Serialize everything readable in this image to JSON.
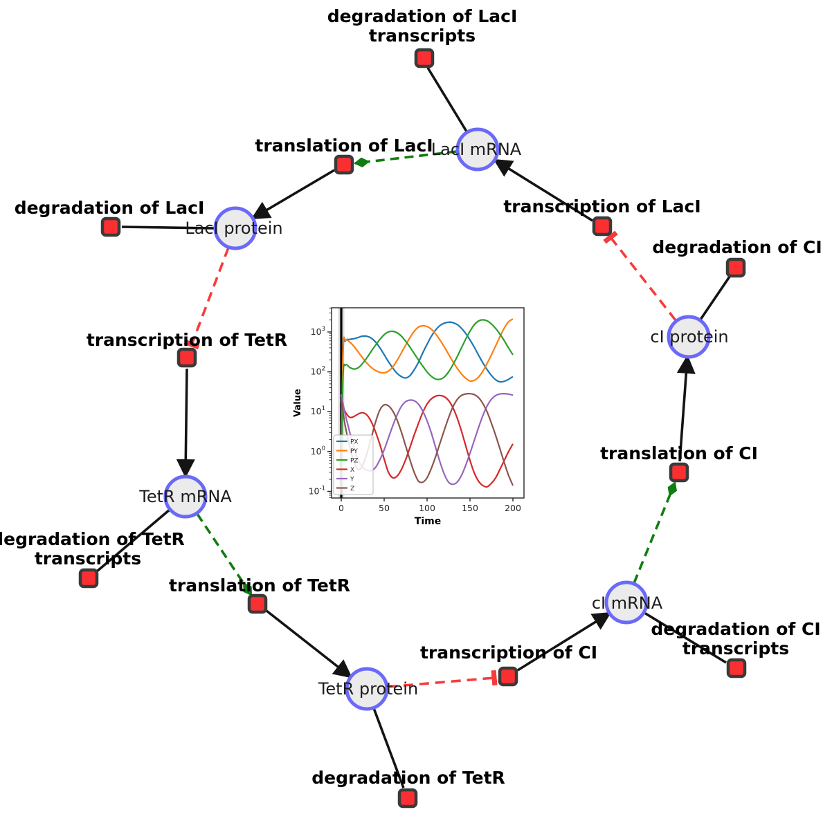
{
  "diagram": {
    "colors": {
      "species_fill": "#ebebeb",
      "species_stroke": "#6a6af8",
      "reaction_fill": "#fa2f32",
      "reaction_stroke": "#3a3a3a",
      "consumption_edge": "#141414",
      "modifier_edge": "#0f7d0f",
      "inhibition_edge": "#f93a3a"
    },
    "species": [
      {
        "id": "laci-mrna",
        "label": "LacI mRNA"
      },
      {
        "id": "laci-protein",
        "label": "LacI protein"
      },
      {
        "id": "tetr-mrna",
        "label": "TetR mRNA"
      },
      {
        "id": "tetr-protein",
        "label": "TetR protein"
      },
      {
        "id": "ci-mrna",
        "label": "cI mRNA"
      },
      {
        "id": "ci-protein",
        "label": "cI protein"
      }
    ],
    "reactions": [
      {
        "id": "deg-laci-transcripts",
        "lines": [
          "degradation of LacI",
          "transcripts"
        ]
      },
      {
        "id": "transl-laci",
        "lines": [
          "translation of LacI"
        ]
      },
      {
        "id": "deg-laci",
        "lines": [
          "degradation of LacI"
        ]
      },
      {
        "id": "transcr-laci",
        "lines": [
          "transcription of LacI"
        ]
      },
      {
        "id": "deg-ci",
        "lines": [
          "degradation of CI"
        ]
      },
      {
        "id": "transcr-tetr",
        "lines": [
          "transcription of TetR"
        ]
      },
      {
        "id": "transl-ci",
        "lines": [
          "translation of CI"
        ]
      },
      {
        "id": "deg-tetr-transcripts",
        "lines": [
          "degradation of TetR",
          "transcripts"
        ]
      },
      {
        "id": "transl-tetr",
        "lines": [
          "translation of TetR"
        ]
      },
      {
        "id": "transcr-ci",
        "lines": [
          "transcription of CI"
        ]
      },
      {
        "id": "deg-ci-transcripts",
        "lines": [
          "degradation of CI",
          "transcripts"
        ]
      },
      {
        "id": "deg-tetr",
        "lines": [
          "degradation of TetR"
        ]
      }
    ]
  },
  "chart_data": {
    "type": "line",
    "x_label": "Time",
    "y_label": "Value",
    "y_scale": "log",
    "grid": false,
    "legend_position": "lower left",
    "x_ticks": [
      0,
      50,
      100,
      150,
      200
    ],
    "y_tick_exponents": [
      -1,
      0,
      1,
      2,
      3
    ],
    "xlim": [
      -11.3,
      212.9
    ],
    "ylim_log": [
      -1.167,
      3.607
    ],
    "vline_x": 0,
    "series": [
      {
        "name": "PX",
        "color": "#1f77b4",
        "points": [
          [
            0,
            0.12
          ],
          [
            2,
            280
          ],
          [
            5,
            600
          ],
          [
            10,
            650
          ],
          [
            15,
            680
          ],
          [
            20,
            730
          ],
          [
            25,
            790
          ],
          [
            30,
            780
          ],
          [
            35,
            700
          ],
          [
            40,
            560
          ],
          [
            45,
            400
          ],
          [
            50,
            270
          ],
          [
            55,
            180
          ],
          [
            60,
            125
          ],
          [
            65,
            92
          ],
          [
            70,
            76
          ],
          [
            75,
            70
          ],
          [
            80,
            80
          ],
          [
            85,
            112
          ],
          [
            90,
            175
          ],
          [
            95,
            300
          ],
          [
            100,
            490
          ],
          [
            105,
            780
          ],
          [
            110,
            1120
          ],
          [
            115,
            1450
          ],
          [
            120,
            1660
          ],
          [
            125,
            1760
          ],
          [
            130,
            1720
          ],
          [
            135,
            1540
          ],
          [
            140,
            1240
          ],
          [
            145,
            920
          ],
          [
            150,
            630
          ],
          [
            155,
            415
          ],
          [
            160,
            262
          ],
          [
            165,
            168
          ],
          [
            170,
            113
          ],
          [
            175,
            81
          ],
          [
            180,
            63
          ],
          [
            185,
            56
          ],
          [
            190,
            58
          ],
          [
            195,
            65
          ],
          [
            200,
            76
          ]
        ]
      },
      {
        "name": "PY",
        "color": "#ff7f0e",
        "points": [
          [
            0,
            0.12
          ],
          [
            2,
            320
          ],
          [
            5,
            620
          ],
          [
            10,
            555
          ],
          [
            15,
            430
          ],
          [
            20,
            310
          ],
          [
            25,
            222
          ],
          [
            30,
            164
          ],
          [
            35,
            129
          ],
          [
            40,
            108
          ],
          [
            45,
            97
          ],
          [
            50,
            94
          ],
          [
            55,
            104
          ],
          [
            60,
            133
          ],
          [
            65,
            192
          ],
          [
            70,
            298
          ],
          [
            75,
            468
          ],
          [
            80,
            720
          ],
          [
            85,
            1040
          ],
          [
            90,
            1330
          ],
          [
            95,
            1430
          ],
          [
            100,
            1370
          ],
          [
            105,
            1170
          ],
          [
            110,
            890
          ],
          [
            115,
            630
          ],
          [
            120,
            425
          ],
          [
            125,
            277
          ],
          [
            130,
            183
          ],
          [
            135,
            124
          ],
          [
            140,
            89
          ],
          [
            145,
            69
          ],
          [
            150,
            59
          ],
          [
            155,
            61
          ],
          [
            160,
            74
          ],
          [
            165,
            104
          ],
          [
            170,
            163
          ],
          [
            175,
            268
          ],
          [
            180,
            452
          ],
          [
            185,
            770
          ],
          [
            190,
            1260
          ],
          [
            195,
            1810
          ],
          [
            200,
            2120
          ]
        ]
      },
      {
        "name": "PZ",
        "color": "#2ca02c",
        "points": [
          [
            0,
            0.12
          ],
          [
            2,
            70
          ],
          [
            5,
            148
          ],
          [
            10,
            128
          ],
          [
            15,
            117
          ],
          [
            20,
            128
          ],
          [
            25,
            163
          ],
          [
            30,
            228
          ],
          [
            35,
            328
          ],
          [
            40,
            468
          ],
          [
            45,
            648
          ],
          [
            50,
            852
          ],
          [
            55,
            1005
          ],
          [
            60,
            1040
          ],
          [
            65,
            958
          ],
          [
            70,
            788
          ],
          [
            75,
            588
          ],
          [
            80,
            418
          ],
          [
            85,
            288
          ],
          [
            90,
            198
          ],
          [
            95,
            139
          ],
          [
            100,
            99
          ],
          [
            105,
            77
          ],
          [
            110,
            66
          ],
          [
            115,
            65
          ],
          [
            120,
            74
          ],
          [
            125,
            99
          ],
          [
            130,
            149
          ],
          [
            135,
            238
          ],
          [
            140,
            398
          ],
          [
            145,
            658
          ],
          [
            150,
            1045
          ],
          [
            155,
            1520
          ],
          [
            160,
            1890
          ],
          [
            165,
            2020
          ],
          [
            170,
            1900
          ],
          [
            175,
            1590
          ],
          [
            180,
            1220
          ],
          [
            185,
            880
          ],
          [
            190,
            600
          ],
          [
            195,
            395
          ],
          [
            200,
            268
          ]
        ]
      },
      {
        "name": "X",
        "color": "#d62728",
        "points": [
          [
            0,
            21
          ],
          [
            2,
            14
          ],
          [
            5,
            9.6
          ],
          [
            10,
            7.2
          ],
          [
            15,
            7.6
          ],
          [
            20,
            8.8
          ],
          [
            25,
            9.4
          ],
          [
            30,
            8.2
          ],
          [
            35,
            5.6
          ],
          [
            40,
            3.1
          ],
          [
            45,
            1.5
          ],
          [
            50,
            0.65
          ],
          [
            55,
            0.3
          ],
          [
            60,
            0.22
          ],
          [
            65,
            0.24
          ],
          [
            70,
            0.35
          ],
          [
            75,
            0.62
          ],
          [
            80,
            1.25
          ],
          [
            85,
            2.6
          ],
          [
            90,
            5.1
          ],
          [
            95,
            9.6
          ],
          [
            100,
            15.5
          ],
          [
            105,
            21
          ],
          [
            110,
            24.5
          ],
          [
            115,
            25.5
          ],
          [
            120,
            23.8
          ],
          [
            125,
            19.2
          ],
          [
            130,
            12.8
          ],
          [
            135,
            7
          ],
          [
            140,
            3.3
          ],
          [
            145,
            1.4
          ],
          [
            150,
            0.6
          ],
          [
            155,
            0.29
          ],
          [
            160,
            0.18
          ],
          [
            165,
            0.14
          ],
          [
            170,
            0.13
          ],
          [
            175,
            0.16
          ],
          [
            180,
            0.22
          ],
          [
            185,
            0.36
          ],
          [
            190,
            0.6
          ],
          [
            195,
            1
          ],
          [
            200,
            1.55
          ]
        ]
      },
      {
        "name": "Y",
        "color": "#9467bd",
        "points": [
          [
            0,
            27
          ],
          [
            2,
            16
          ],
          [
            5,
            8
          ],
          [
            10,
            3
          ],
          [
            15,
            1.2
          ],
          [
            20,
            0.6
          ],
          [
            25,
            0.4
          ],
          [
            30,
            0.34
          ],
          [
            35,
            0.33
          ],
          [
            40,
            0.4
          ],
          [
            45,
            0.62
          ],
          [
            50,
            1.1
          ],
          [
            55,
            2.2
          ],
          [
            60,
            4.4
          ],
          [
            65,
            8.2
          ],
          [
            70,
            13.5
          ],
          [
            75,
            17.8
          ],
          [
            80,
            19.5
          ],
          [
            85,
            18.8
          ],
          [
            90,
            15.3
          ],
          [
            95,
            10.3
          ],
          [
            100,
            5.9
          ],
          [
            105,
            2.9
          ],
          [
            110,
            1.25
          ],
          [
            115,
            0.55
          ],
          [
            120,
            0.27
          ],
          [
            125,
            0.17
          ],
          [
            130,
            0.15
          ],
          [
            135,
            0.17
          ],
          [
            140,
            0.25
          ],
          [
            145,
            0.45
          ],
          [
            150,
            0.9
          ],
          [
            155,
            1.9
          ],
          [
            160,
            4
          ],
          [
            165,
            8
          ],
          [
            170,
            14
          ],
          [
            175,
            20.5
          ],
          [
            180,
            25.5
          ],
          [
            185,
            27.8
          ],
          [
            190,
            28.3
          ],
          [
            195,
            27.6
          ],
          [
            200,
            26
          ]
        ]
      },
      {
        "name": "Z",
        "color": "#8c564b",
        "points": [
          [
            0,
            21
          ],
          [
            2,
            10
          ],
          [
            5,
            4
          ],
          [
            10,
            1.3
          ],
          [
            15,
            0.55
          ],
          [
            20,
            0.35
          ],
          [
            25,
            0.45
          ],
          [
            30,
            0.92
          ],
          [
            35,
            2.2
          ],
          [
            40,
            5.5
          ],
          [
            45,
            11
          ],
          [
            50,
            14.8
          ],
          [
            55,
            14
          ],
          [
            60,
            10.4
          ],
          [
            65,
            6.2
          ],
          [
            70,
            3.1
          ],
          [
            75,
            1.4
          ],
          [
            80,
            0.62
          ],
          [
            85,
            0.3
          ],
          [
            90,
            0.18
          ],
          [
            95,
            0.17
          ],
          [
            100,
            0.22
          ],
          [
            105,
            0.38
          ],
          [
            110,
            0.75
          ],
          [
            115,
            1.6
          ],
          [
            120,
            3.4
          ],
          [
            125,
            7
          ],
          [
            130,
            13
          ],
          [
            135,
            20
          ],
          [
            140,
            25.5
          ],
          [
            145,
            27.9
          ],
          [
            150,
            28.2
          ],
          [
            155,
            26.8
          ],
          [
            160,
            22.5
          ],
          [
            165,
            16
          ],
          [
            170,
            9.8
          ],
          [
            175,
            5.1
          ],
          [
            180,
            2.5
          ],
          [
            185,
            1.15
          ],
          [
            190,
            0.52
          ],
          [
            195,
            0.25
          ],
          [
            200,
            0.14
          ]
        ]
      }
    ]
  }
}
